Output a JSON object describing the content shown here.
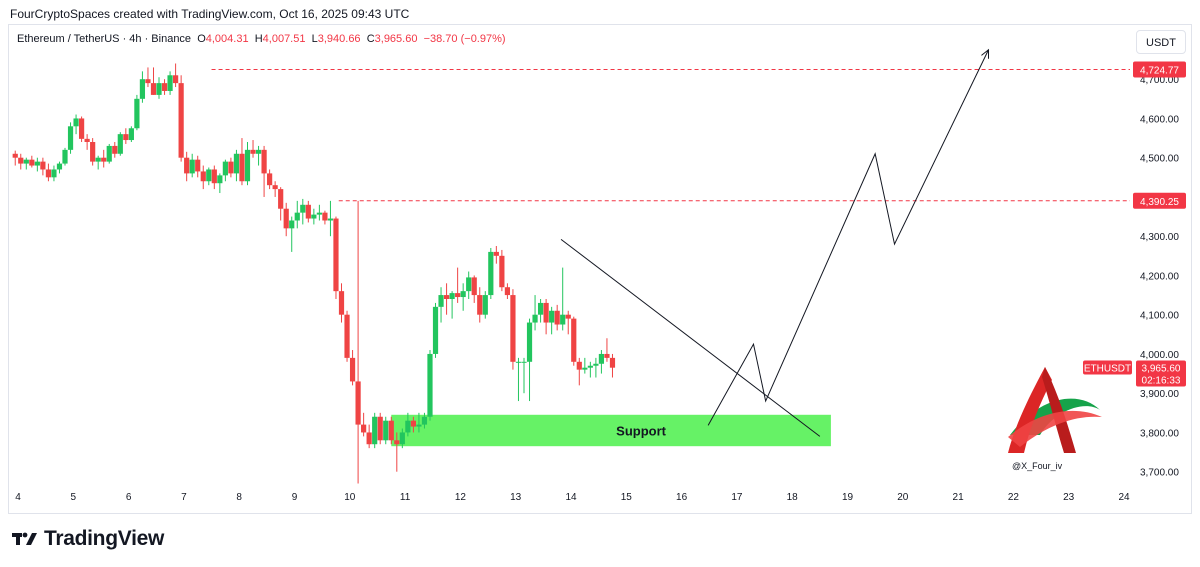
{
  "caption": "FourCryptoSpaces created with TradingView.com, Oct 16, 2025 09:43 UTC",
  "header": {
    "symbol": "Ethereum / TetherUS · 4h · Binance",
    "open_label": "O",
    "open": "4,004.31",
    "high_label": "H",
    "high": "4,007.51",
    "low_label": "L",
    "low": "3,940.66",
    "close_label": "C",
    "close": "3,965.60",
    "change": "−38.70 (−0.97%)"
  },
  "currency_button": "USDT",
  "brand": "TradingView",
  "watermark_handle": "@X_Four_iv",
  "colors": {
    "up": "#22c55e",
    "down": "#ef4444",
    "line": "#131722",
    "level": "#f23645",
    "support": "#66f266"
  },
  "chart_data": {
    "type": "candlestick",
    "symbol": "ETHUSDT",
    "timeframe": "4h",
    "ylim": [
      3650,
      4850
    ],
    "y_ticks": [
      "4,700.00",
      "4,600.00",
      "4,500.00",
      "4,400.00",
      "4,300.00",
      "4,200.00",
      "4,100.00",
      "4,000.00",
      "3,900.00",
      "3,800.00",
      "3,700.00"
    ],
    "x_ticks": [
      "4",
      "5",
      "6",
      "7",
      "8",
      "9",
      "10",
      "11",
      "12",
      "13",
      "14",
      "15",
      "16",
      "17",
      "18",
      "19",
      "20",
      "21",
      "22",
      "23",
      "24"
    ],
    "price_tags": [
      {
        "label": "4,724.77",
        "value": 4724.77
      },
      {
        "label": "4,390.25",
        "value": 4390.25
      }
    ],
    "last_price_tag": {
      "symbol": "ETHUSDT",
      "price": "3,965.60",
      "countdown": "02:16:33",
      "value": 3965.6
    },
    "support_zone": {
      "label": "Support",
      "low": 3765,
      "high": 3845,
      "x_start": 10.75,
      "x_end": 18.7
    },
    "trendline": [
      {
        "x": 13.82,
        "y": 4292
      },
      {
        "x": 18.5,
        "y": 3790
      }
    ],
    "projection": [
      {
        "x": 16.48,
        "y": 3818
      },
      {
        "x": 17.3,
        "y": 4025
      },
      {
        "x": 17.52,
        "y": 3880
      },
      {
        "x": 19.5,
        "y": 4510
      },
      {
        "x": 19.85,
        "y": 4280
      },
      {
        "x": 21.55,
        "y": 4775
      }
    ],
    "candles": [
      {
        "x": 3.95,
        "o": 4510,
        "h": 4518,
        "l": 4480,
        "c": 4500
      },
      {
        "x": 4.05,
        "o": 4500,
        "h": 4510,
        "l": 4470,
        "c": 4485
      },
      {
        "x": 4.15,
        "o": 4485,
        "h": 4500,
        "l": 4470,
        "c": 4495
      },
      {
        "x": 4.25,
        "o": 4495,
        "h": 4505,
        "l": 4475,
        "c": 4480
      },
      {
        "x": 4.35,
        "o": 4480,
        "h": 4500,
        "l": 4465,
        "c": 4490
      },
      {
        "x": 4.45,
        "o": 4490,
        "h": 4500,
        "l": 4455,
        "c": 4470
      },
      {
        "x": 4.55,
        "o": 4470,
        "h": 4485,
        "l": 4440,
        "c": 4450
      },
      {
        "x": 4.65,
        "o": 4450,
        "h": 4480,
        "l": 4440,
        "c": 4470
      },
      {
        "x": 4.75,
        "o": 4470,
        "h": 4490,
        "l": 4460,
        "c": 4485
      },
      {
        "x": 4.85,
        "o": 4485,
        "h": 4525,
        "l": 4480,
        "c": 4520
      },
      {
        "x": 4.95,
        "o": 4520,
        "h": 4590,
        "l": 4510,
        "c": 4580
      },
      {
        "x": 5.05,
        "o": 4580,
        "h": 4610,
        "l": 4560,
        "c": 4600
      },
      {
        "x": 5.15,
        "o": 4600,
        "h": 4605,
        "l": 4540,
        "c": 4548
      },
      {
        "x": 5.25,
        "o": 4548,
        "h": 4560,
        "l": 4520,
        "c": 4540
      },
      {
        "x": 5.35,
        "o": 4540,
        "h": 4550,
        "l": 4480,
        "c": 4490
      },
      {
        "x": 5.45,
        "o": 4490,
        "h": 4505,
        "l": 4470,
        "c": 4500
      },
      {
        "x": 5.55,
        "o": 4500,
        "h": 4520,
        "l": 4475,
        "c": 4490
      },
      {
        "x": 5.65,
        "o": 4490,
        "h": 4535,
        "l": 4485,
        "c": 4530
      },
      {
        "x": 5.75,
        "o": 4530,
        "h": 4540,
        "l": 4500,
        "c": 4510
      },
      {
        "x": 5.85,
        "o": 4510,
        "h": 4565,
        "l": 4505,
        "c": 4560
      },
      {
        "x": 5.95,
        "o": 4560,
        "h": 4575,
        "l": 4535,
        "c": 4545
      },
      {
        "x": 6.05,
        "o": 4545,
        "h": 4580,
        "l": 4540,
        "c": 4575
      },
      {
        "x": 6.15,
        "o": 4575,
        "h": 4660,
        "l": 4570,
        "c": 4650
      },
      {
        "x": 6.25,
        "o": 4650,
        "h": 4720,
        "l": 4640,
        "c": 4700
      },
      {
        "x": 6.35,
        "o": 4700,
        "h": 4730,
        "l": 4680,
        "c": 4690
      },
      {
        "x": 6.45,
        "o": 4690,
        "h": 4730,
        "l": 4660,
        "c": 4660
      },
      {
        "x": 6.55,
        "o": 4660,
        "h": 4705,
        "l": 4650,
        "c": 4690
      },
      {
        "x": 6.65,
        "o": 4690,
        "h": 4700,
        "l": 4660,
        "c": 4670
      },
      {
        "x": 6.75,
        "o": 4670,
        "h": 4720,
        "l": 4660,
        "c": 4710
      },
      {
        "x": 6.85,
        "o": 4710,
        "h": 4740,
        "l": 4680,
        "c": 4690
      },
      {
        "x": 6.95,
        "o": 4690,
        "h": 4710,
        "l": 4490,
        "c": 4500
      },
      {
        "x": 7.05,
        "o": 4500,
        "h": 4515,
        "l": 4440,
        "c": 4460
      },
      {
        "x": 7.15,
        "o": 4460,
        "h": 4510,
        "l": 4450,
        "c": 4495
      },
      {
        "x": 7.25,
        "o": 4495,
        "h": 4505,
        "l": 4450,
        "c": 4465
      },
      {
        "x": 7.35,
        "o": 4465,
        "h": 4480,
        "l": 4420,
        "c": 4440
      },
      {
        "x": 7.45,
        "o": 4440,
        "h": 4475,
        "l": 4430,
        "c": 4470
      },
      {
        "x": 7.55,
        "o": 4470,
        "h": 4480,
        "l": 4420,
        "c": 4435
      },
      {
        "x": 7.65,
        "o": 4435,
        "h": 4460,
        "l": 4410,
        "c": 4455
      },
      {
        "x": 7.75,
        "o": 4455,
        "h": 4495,
        "l": 4440,
        "c": 4490
      },
      {
        "x": 7.85,
        "o": 4490,
        "h": 4500,
        "l": 4450,
        "c": 4460
      },
      {
        "x": 7.95,
        "o": 4460,
        "h": 4520,
        "l": 4440,
        "c": 4510
      },
      {
        "x": 8.05,
        "o": 4510,
        "h": 4550,
        "l": 4430,
        "c": 4440
      },
      {
        "x": 8.15,
        "o": 4440,
        "h": 4540,
        "l": 4430,
        "c": 4520
      },
      {
        "x": 8.25,
        "o": 4520,
        "h": 4545,
        "l": 4500,
        "c": 4510
      },
      {
        "x": 8.35,
        "o": 4510,
        "h": 4530,
        "l": 4480,
        "c": 4520
      },
      {
        "x": 8.45,
        "o": 4520,
        "h": 4530,
        "l": 4400,
        "c": 4460
      },
      {
        "x": 8.55,
        "o": 4460,
        "h": 4470,
        "l": 4420,
        "c": 4430
      },
      {
        "x": 8.65,
        "o": 4430,
        "h": 4440,
        "l": 4400,
        "c": 4420
      },
      {
        "x": 8.75,
        "o": 4420,
        "h": 4425,
        "l": 4340,
        "c": 4370
      },
      {
        "x": 8.85,
        "o": 4370,
        "h": 4385,
        "l": 4300,
        "c": 4320
      },
      {
        "x": 8.95,
        "o": 4320,
        "h": 4350,
        "l": 4260,
        "c": 4340
      },
      {
        "x": 9.05,
        "o": 4340,
        "h": 4390,
        "l": 4320,
        "c": 4360
      },
      {
        "x": 9.15,
        "o": 4360,
        "h": 4395,
        "l": 4330,
        "c": 4380
      },
      {
        "x": 9.25,
        "o": 4380,
        "h": 4390,
        "l": 4335,
        "c": 4345
      },
      {
        "x": 9.35,
        "o": 4345,
        "h": 4370,
        "l": 4330,
        "c": 4355
      },
      {
        "x": 9.45,
        "o": 4355,
        "h": 4380,
        "l": 4340,
        "c": 4360
      },
      {
        "x": 9.55,
        "o": 4360,
        "h": 4365,
        "l": 4330,
        "c": 4340
      },
      {
        "x": 9.65,
        "o": 4340,
        "h": 4390,
        "l": 4300,
        "c": 4345
      },
      {
        "x": 9.75,
        "o": 4345,
        "h": 4350,
        "l": 4140,
        "c": 4160
      },
      {
        "x": 9.85,
        "o": 4160,
        "h": 4180,
        "l": 4080,
        "c": 4100
      },
      {
        "x": 9.95,
        "o": 4100,
        "h": 4110,
        "l": 3980,
        "c": 3990
      },
      {
        "x": 10.05,
        "o": 3990,
        "h": 4010,
        "l": 3920,
        "c": 3930
      },
      {
        "x": 10.15,
        "o": 3930,
        "h": 4390,
        "l": 3670,
        "c": 3820
      },
      {
        "x": 10.25,
        "o": 3820,
        "h": 3850,
        "l": 3790,
        "c": 3800
      },
      {
        "x": 10.35,
        "o": 3800,
        "h": 3820,
        "l": 3760,
        "c": 3770
      },
      {
        "x": 10.45,
        "o": 3770,
        "h": 3850,
        "l": 3760,
        "c": 3840
      },
      {
        "x": 10.55,
        "o": 3840,
        "h": 3850,
        "l": 3770,
        "c": 3780
      },
      {
        "x": 10.65,
        "o": 3780,
        "h": 3840,
        "l": 3770,
        "c": 3830
      },
      {
        "x": 10.75,
        "o": 3830,
        "h": 3840,
        "l": 3770,
        "c": 3780
      },
      {
        "x": 10.85,
        "o": 3780,
        "h": 3800,
        "l": 3700,
        "c": 3770
      },
      {
        "x": 10.95,
        "o": 3770,
        "h": 3810,
        "l": 3760,
        "c": 3800
      },
      {
        "x": 11.05,
        "o": 3800,
        "h": 3850,
        "l": 3790,
        "c": 3830
      },
      {
        "x": 11.15,
        "o": 3830,
        "h": 3840,
        "l": 3800,
        "c": 3815
      },
      {
        "x": 11.25,
        "o": 3815,
        "h": 3850,
        "l": 3800,
        "c": 3820
      },
      {
        "x": 11.35,
        "o": 3820,
        "h": 3850,
        "l": 3810,
        "c": 3840
      },
      {
        "x": 11.45,
        "o": 3840,
        "h": 4010,
        "l": 3830,
        "c": 4000
      },
      {
        "x": 11.55,
        "o": 4000,
        "h": 4130,
        "l": 3990,
        "c": 4120
      },
      {
        "x": 11.65,
        "o": 4120,
        "h": 4170,
        "l": 4080,
        "c": 4150
      },
      {
        "x": 11.75,
        "o": 4150,
        "h": 4180,
        "l": 4100,
        "c": 4140
      },
      {
        "x": 11.85,
        "o": 4140,
        "h": 4160,
        "l": 4090,
        "c": 4155
      },
      {
        "x": 11.95,
        "o": 4155,
        "h": 4220,
        "l": 4130,
        "c": 4145
      },
      {
        "x": 12.05,
        "o": 4145,
        "h": 4180,
        "l": 4110,
        "c": 4160
      },
      {
        "x": 12.15,
        "o": 4160,
        "h": 4210,
        "l": 4140,
        "c": 4195
      },
      {
        "x": 12.25,
        "o": 4195,
        "h": 4200,
        "l": 4130,
        "c": 4150
      },
      {
        "x": 12.35,
        "o": 4150,
        "h": 4170,
        "l": 4080,
        "c": 4100
      },
      {
        "x": 12.45,
        "o": 4100,
        "h": 4160,
        "l": 4090,
        "c": 4150
      },
      {
        "x": 12.55,
        "o": 4150,
        "h": 4270,
        "l": 4140,
        "c": 4260
      },
      {
        "x": 12.65,
        "o": 4260,
        "h": 4275,
        "l": 4230,
        "c": 4250
      },
      {
        "x": 12.75,
        "o": 4250,
        "h": 4265,
        "l": 4160,
        "c": 4170
      },
      {
        "x": 12.85,
        "o": 4170,
        "h": 4180,
        "l": 4140,
        "c": 4150
      },
      {
        "x": 12.95,
        "o": 4150,
        "h": 4165,
        "l": 3960,
        "c": 3980
      },
      {
        "x": 13.05,
        "o": 3980,
        "h": 3990,
        "l": 3880,
        "c": 3980
      },
      {
        "x": 13.15,
        "o": 3980,
        "h": 3990,
        "l": 3900,
        "c": 3980
      },
      {
        "x": 13.25,
        "o": 3980,
        "h": 4090,
        "l": 3880,
        "c": 4080
      },
      {
        "x": 13.35,
        "o": 4080,
        "h": 4150,
        "l": 4060,
        "c": 4100
      },
      {
        "x": 13.45,
        "o": 4100,
        "h": 4140,
        "l": 4080,
        "c": 4130
      },
      {
        "x": 13.55,
        "o": 4130,
        "h": 4140,
        "l": 4050,
        "c": 4080
      },
      {
        "x": 13.65,
        "o": 4080,
        "h": 4120,
        "l": 4050,
        "c": 4110
      },
      {
        "x": 13.75,
        "o": 4110,
        "h": 4125,
        "l": 4060,
        "c": 4075
      },
      {
        "x": 13.85,
        "o": 4075,
        "h": 4220,
        "l": 4060,
        "c": 4100
      },
      {
        "x": 13.95,
        "o": 4100,
        "h": 4110,
        "l": 4050,
        "c": 4090
      },
      {
        "x": 14.05,
        "o": 4090,
        "h": 4095,
        "l": 3970,
        "c": 3980
      },
      {
        "x": 14.15,
        "o": 3980,
        "h": 3990,
        "l": 3920,
        "c": 3960
      },
      {
        "x": 14.25,
        "o": 3960,
        "h": 3990,
        "l": 3950,
        "c": 3965
      },
      {
        "x": 14.35,
        "o": 3965,
        "h": 3980,
        "l": 3940,
        "c": 3970
      },
      {
        "x": 14.45,
        "o": 3970,
        "h": 3990,
        "l": 3940,
        "c": 3975
      },
      {
        "x": 14.55,
        "o": 3975,
        "h": 4010,
        "l": 3950,
        "c": 4000
      },
      {
        "x": 14.65,
        "o": 4000,
        "h": 4040,
        "l": 3980,
        "c": 3990
      },
      {
        "x": 14.75,
        "o": 3990,
        "h": 4000,
        "l": 3940,
        "c": 3965
      }
    ]
  }
}
